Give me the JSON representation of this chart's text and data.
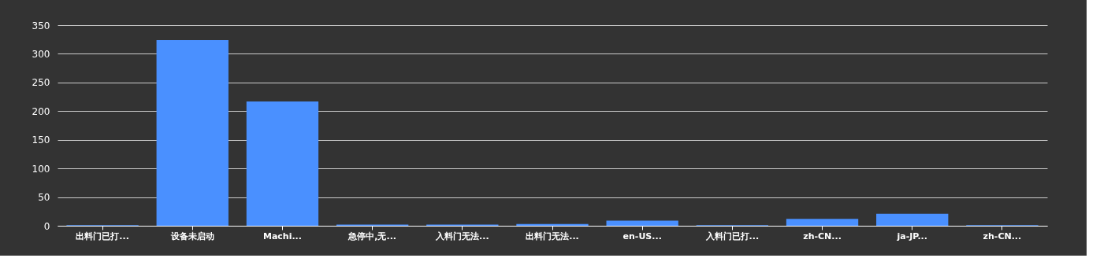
{
  "chart_data": {
    "type": "bar",
    "categories": [
      "出料门已打...",
      "设备未启动",
      "Machi...",
      "急停中,无...",
      "入料门无法...",
      "出料门无法...",
      "en-US...",
      "入料门已打...",
      "zh-CN...",
      "ja-JP...",
      "zh-CN..."
    ],
    "values": [
      1,
      324,
      217,
      2,
      2,
      3,
      9,
      1,
      12,
      21,
      1
    ],
    "color": "#4a90ff",
    "ylim": [
      0,
      350
    ],
    "yticks": [
      0,
      50,
      100,
      150,
      200,
      250,
      300,
      350
    ],
    "grid": "y"
  }
}
